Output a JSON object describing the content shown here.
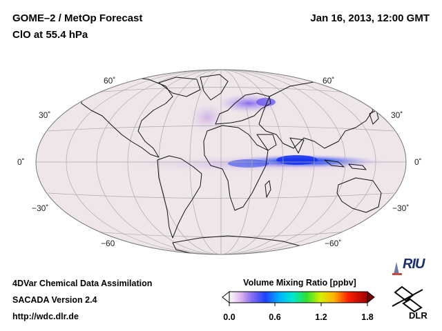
{
  "header": {
    "title": "GOME–2 / MetOp Forecast",
    "species": "ClO at 55.4 hPa",
    "date": "Jan 16, 2013, 12:00 GMT"
  },
  "map": {
    "projection": "Mollweide / Hammer global",
    "lat_labels_left": [
      "60˚",
      "30˚",
      "0˚",
      "−30˚",
      "−60"
    ],
    "lat_labels_right": [
      "60˚",
      "30˚",
      "0˚",
      "−30˚",
      "−60˚"
    ],
    "field_colors": {
      "background": "#efe6e9",
      "land_outline": "#111111",
      "equator_band": "#3040f0",
      "north_patch": "#8a6ef0"
    }
  },
  "colorbar": {
    "title": "Volume Mixing Ratio [ppbv]",
    "ticks": [
      "0.0",
      "0.6",
      "1.2",
      "1.8"
    ]
  },
  "footer": {
    "line1": "4DVar Chemical Data Assimilation",
    "line2": "SACADA Version 2.4",
    "line3": "http://wdc.dlr.de"
  },
  "logos": {
    "riu": "RIU",
    "dlr": "DLR"
  }
}
